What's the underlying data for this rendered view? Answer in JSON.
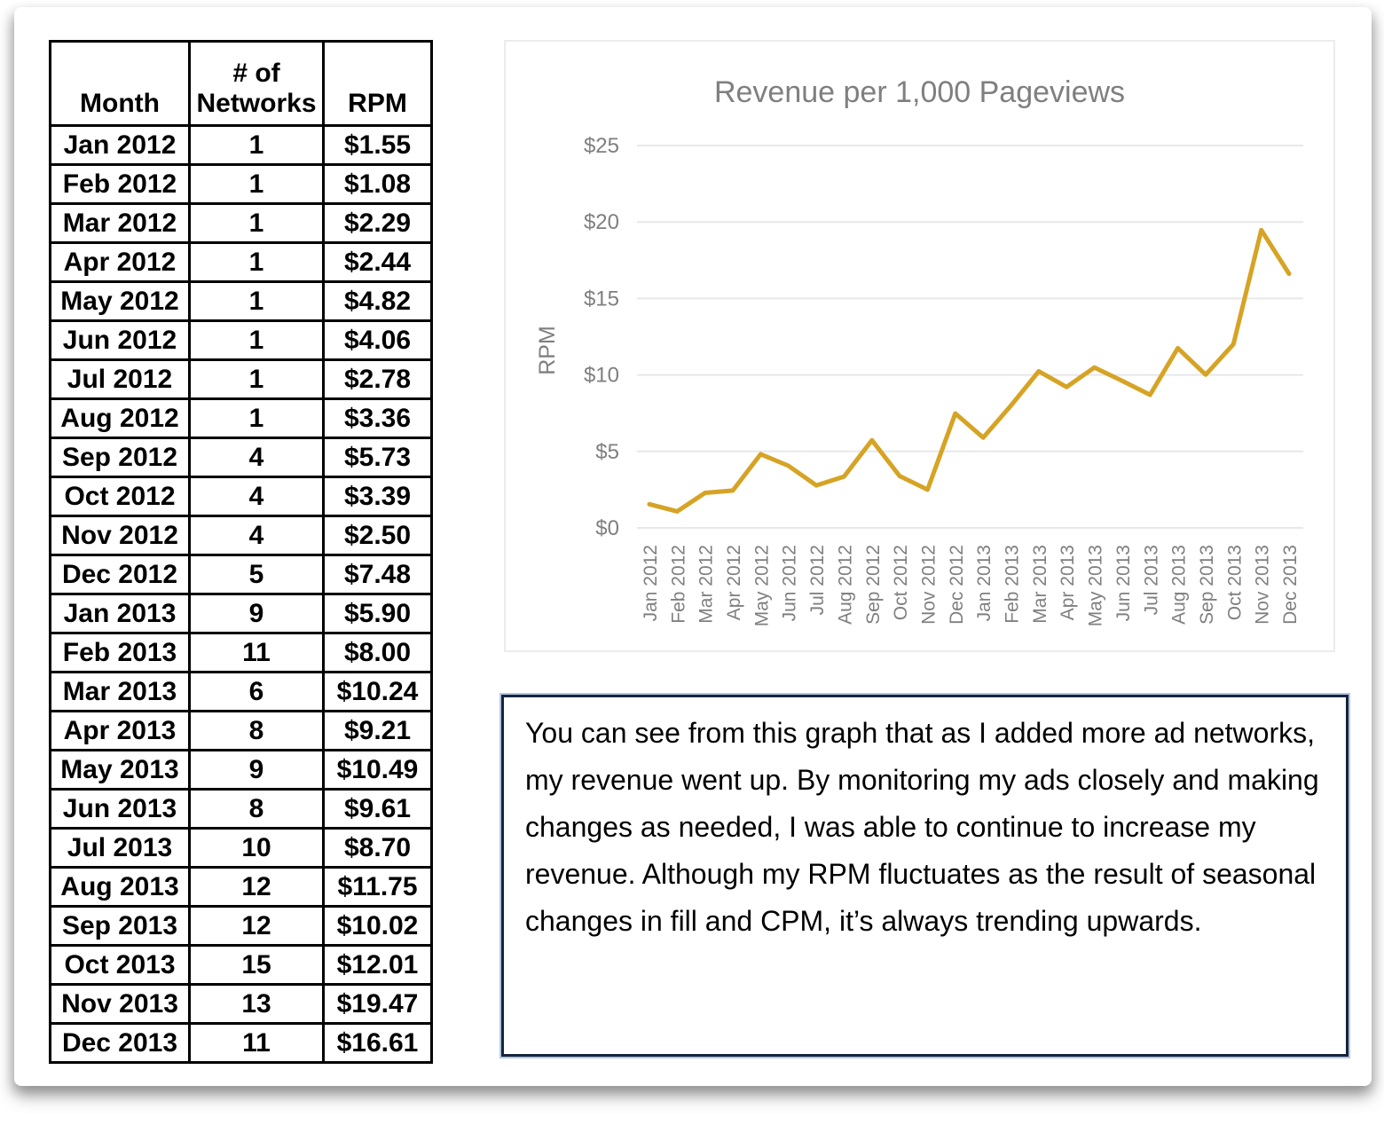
{
  "table": {
    "headers": [
      "Month",
      "# of Networks",
      "RPM"
    ],
    "rows": [
      [
        "Jan 2012",
        "1",
        "$1.55"
      ],
      [
        "Feb 2012",
        "1",
        "$1.08"
      ],
      [
        "Mar 2012",
        "1",
        "$2.29"
      ],
      [
        "Apr 2012",
        "1",
        "$2.44"
      ],
      [
        "May 2012",
        "1",
        "$4.82"
      ],
      [
        "Jun 2012",
        "1",
        "$4.06"
      ],
      [
        "Jul 2012",
        "1",
        "$2.78"
      ],
      [
        "Aug 2012",
        "1",
        "$3.36"
      ],
      [
        "Sep 2012",
        "4",
        "$5.73"
      ],
      [
        "Oct 2012",
        "4",
        "$3.39"
      ],
      [
        "Nov 2012",
        "4",
        "$2.50"
      ],
      [
        "Dec 2012",
        "5",
        "$7.48"
      ],
      [
        "Jan 2013",
        "9",
        "$5.90"
      ],
      [
        "Feb 2013",
        "11",
        "$8.00"
      ],
      [
        "Mar 2013",
        "6",
        "$10.24"
      ],
      [
        "Apr 2013",
        "8",
        "$9.21"
      ],
      [
        "May 2013",
        "9",
        "$10.49"
      ],
      [
        "Jun 2013",
        "8",
        "$9.61"
      ],
      [
        "Jul 2013",
        "10",
        "$8.70"
      ],
      [
        "Aug 2013",
        "12",
        "$11.75"
      ],
      [
        "Sep 2013",
        "12",
        "$10.02"
      ],
      [
        "Oct 2013",
        "15",
        "$12.01"
      ],
      [
        "Nov 2013",
        "13",
        "$19.47"
      ],
      [
        "Dec 2013",
        "11",
        "$16.61"
      ]
    ]
  },
  "chart_data": {
    "type": "line",
    "title": "Revenue per 1,000 Pageviews",
    "xlabel": "",
    "ylabel": "RPM",
    "x": [
      "Jan 2012",
      "Feb 2012",
      "Mar 2012",
      "Apr 2012",
      "May 2012",
      "Jun 2012",
      "Jul 2012",
      "Aug 2012",
      "Sep 2012",
      "Oct 2012",
      "Nov 2012",
      "Dec 2012",
      "Jan 2013",
      "Feb 2013",
      "Mar 2013",
      "Apr 2013",
      "May 2013",
      "Jun 2013",
      "Jul 2013",
      "Aug 2013",
      "Sep 2013",
      "Oct 2013",
      "Nov 2013",
      "Dec 2013"
    ],
    "values": [
      1.55,
      1.08,
      2.29,
      2.44,
      4.82,
      4.06,
      2.78,
      3.36,
      5.73,
      3.39,
      2.5,
      7.48,
      5.9,
      8.0,
      10.24,
      9.21,
      10.49,
      9.61,
      8.7,
      11.75,
      10.02,
      12.01,
      19.47,
      16.61
    ],
    "ylim": [
      0,
      25
    ],
    "yticks": [
      0,
      5,
      10,
      15,
      20,
      25
    ],
    "ytick_labels": [
      "$0",
      "$5",
      "$10",
      "$15",
      "$20",
      "$25"
    ],
    "grid": true,
    "legend": false,
    "x_tick_rotation": -90,
    "line_color": "#D6A324",
    "text_color": "#7f7f7f",
    "grid_color": "#e8e8e8"
  },
  "note": {
    "text": "You can see from this graph that as I added more ad networks, my revenue went up. By monitoring my ads closely and making changes as needed, I was able to continue to increase my revenue. Although my RPM fluctuates as the result of seasonal changes in fill and CPM, it’s always trending upwards."
  }
}
